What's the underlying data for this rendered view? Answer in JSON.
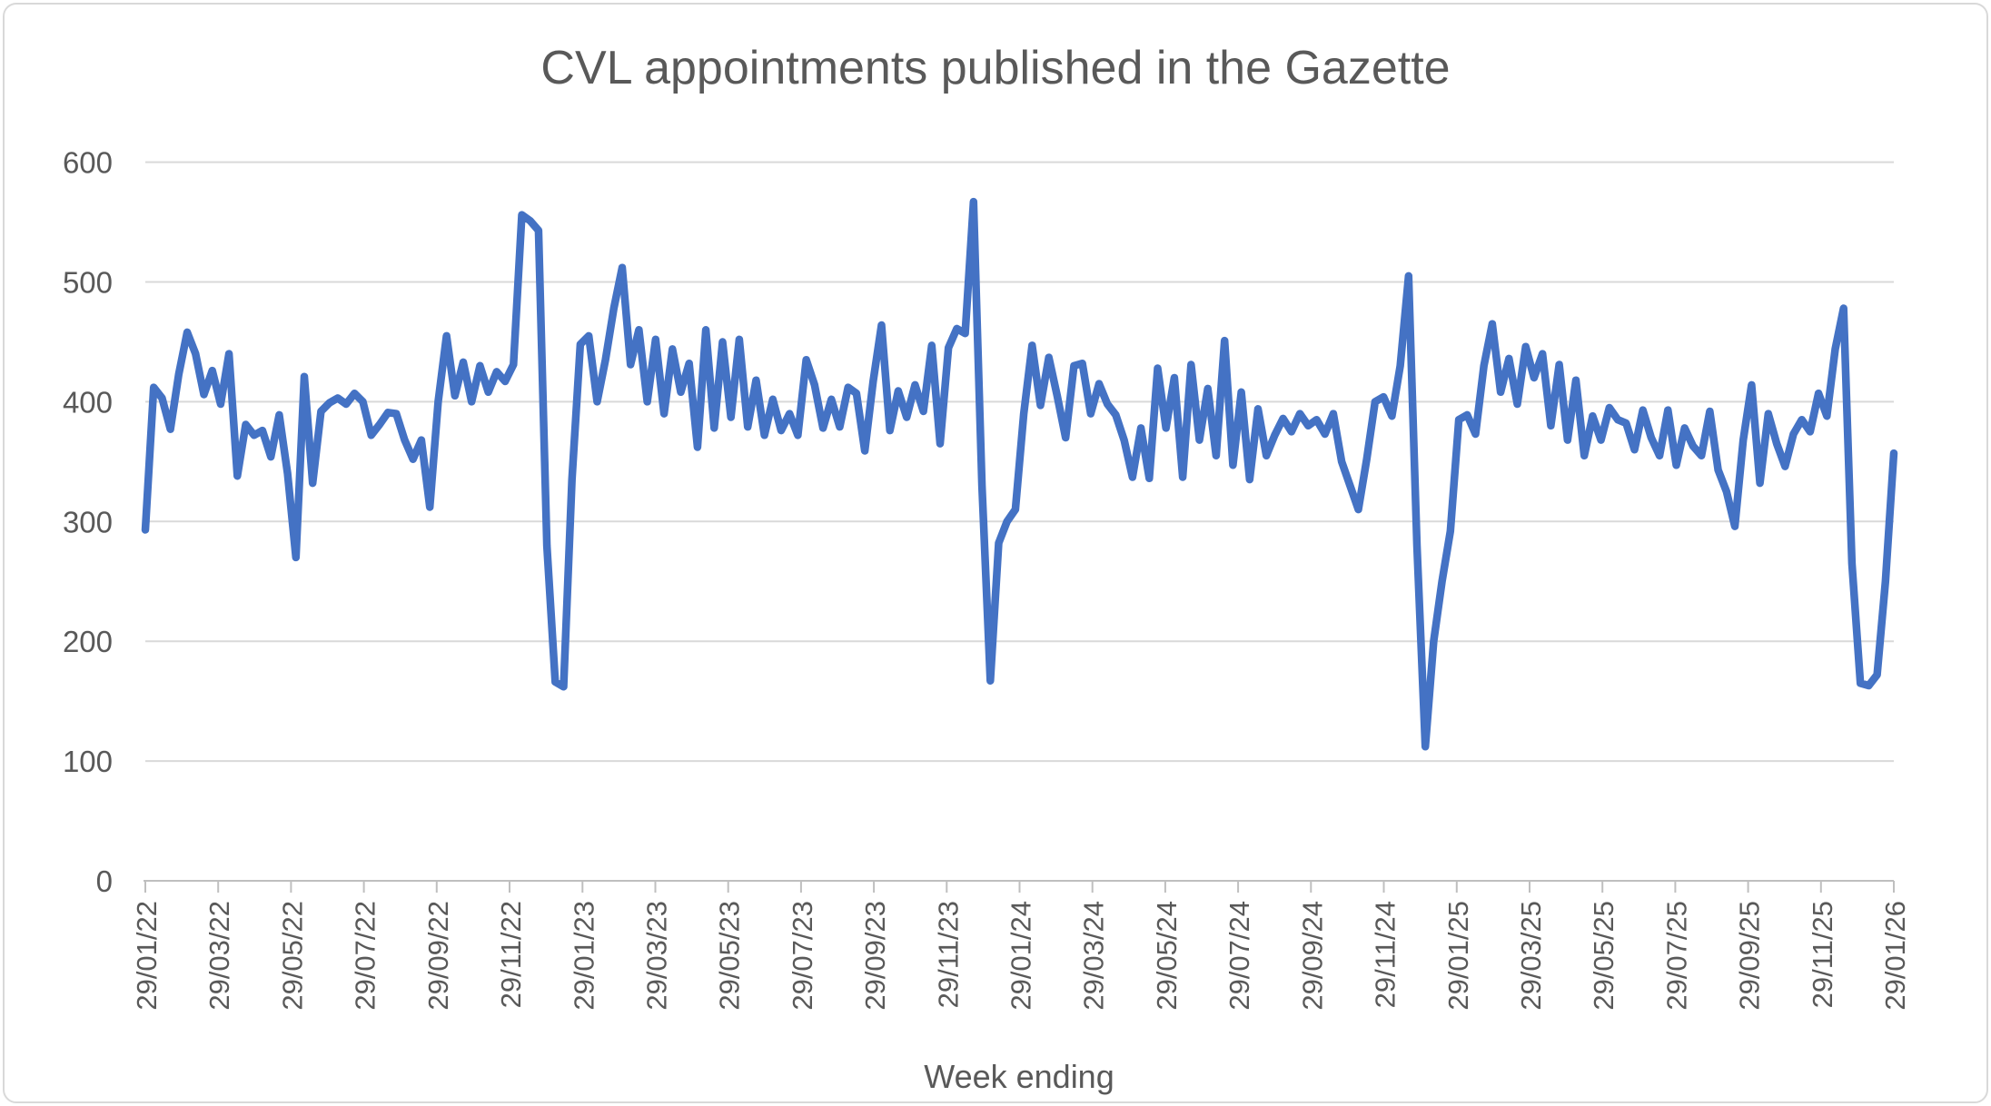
{
  "chart_data": {
    "type": "line",
    "title": "CVL appointments published in the Gazette",
    "xlabel": "Week ending",
    "ylabel": "",
    "legend": "none",
    "frequency": "weekly",
    "x_start": "29/01/22",
    "x_end": "29/01/26",
    "ylim": [
      0,
      600
    ],
    "y_ticks": [
      0,
      100,
      200,
      300,
      400,
      500,
      600
    ],
    "x_tick_labels": [
      "29/01/22",
      "29/03/22",
      "29/05/22",
      "29/07/22",
      "29/09/22",
      "29/11/22",
      "29/01/23",
      "29/03/23",
      "29/05/23",
      "29/07/23",
      "29/09/23",
      "29/11/23",
      "29/01/24",
      "29/03/24",
      "29/05/24",
      "29/07/24",
      "29/09/24",
      "29/11/24",
      "29/01/25",
      "29/03/25",
      "29/05/25",
      "29/07/25",
      "29/09/25",
      "29/11/25",
      "29/01/26"
    ],
    "grid": "horizontal",
    "line_color": "#4472C4",
    "gridline_color": "#D9D9D9",
    "axis_color": "#BFBFBF",
    "text_color": "#595959",
    "border_color": "#D9D9D9",
    "series": [
      {
        "name": "CVL appointments",
        "values": [
          293,
          412,
          403,
          377,
          423,
          458,
          440,
          406,
          426,
          398,
          440,
          338,
          381,
          372,
          376,
          354,
          389,
          340,
          270,
          421,
          332,
          392,
          399,
          403,
          398,
          407,
          400,
          372,
          381,
          391,
          390,
          368,
          352,
          368,
          312,
          400,
          455,
          405,
          433,
          400,
          430,
          408,
          425,
          417,
          431,
          556,
          551,
          543,
          280,
          166,
          162,
          335,
          448,
          455,
          400,
          435,
          478,
          512,
          431,
          460,
          400,
          452,
          390,
          444,
          408,
          432,
          362,
          460,
          378,
          450,
          387,
          452,
          379,
          418,
          372,
          402,
          376,
          390,
          372,
          435,
          414,
          378,
          402,
          379,
          412,
          407,
          359,
          417,
          464,
          376,
          409,
          387,
          414,
          392,
          447,
          365,
          445,
          461,
          457,
          567,
          330,
          167,
          282,
          300,
          310,
          390,
          447,
          397,
          437,
          405,
          370,
          430,
          432,
          390,
          415,
          398,
          389,
          368,
          337,
          378,
          336,
          428,
          378,
          420,
          337,
          431,
          368,
          411,
          355,
          451,
          347,
          408,
          335,
          394,
          355,
          372,
          386,
          375,
          390,
          380,
          385,
          373,
          390,
          350,
          330,
          310,
          352,
          400,
          404,
          388,
          430,
          505,
          280,
          112,
          200,
          250,
          292,
          385,
          389,
          373,
          430,
          465,
          408,
          436,
          398,
          446,
          420,
          440,
          380,
          431,
          368,
          418,
          355,
          388,
          368,
          395,
          385,
          382,
          360,
          393,
          370,
          355,
          393,
          347,
          378,
          363,
          355,
          392,
          343,
          325,
          296,
          368,
          414,
          332,
          390,
          365,
          346,
          373,
          385,
          375,
          407,
          388,
          444,
          478,
          265,
          165,
          163,
          172,
          250,
          357
        ]
      }
    ]
  }
}
